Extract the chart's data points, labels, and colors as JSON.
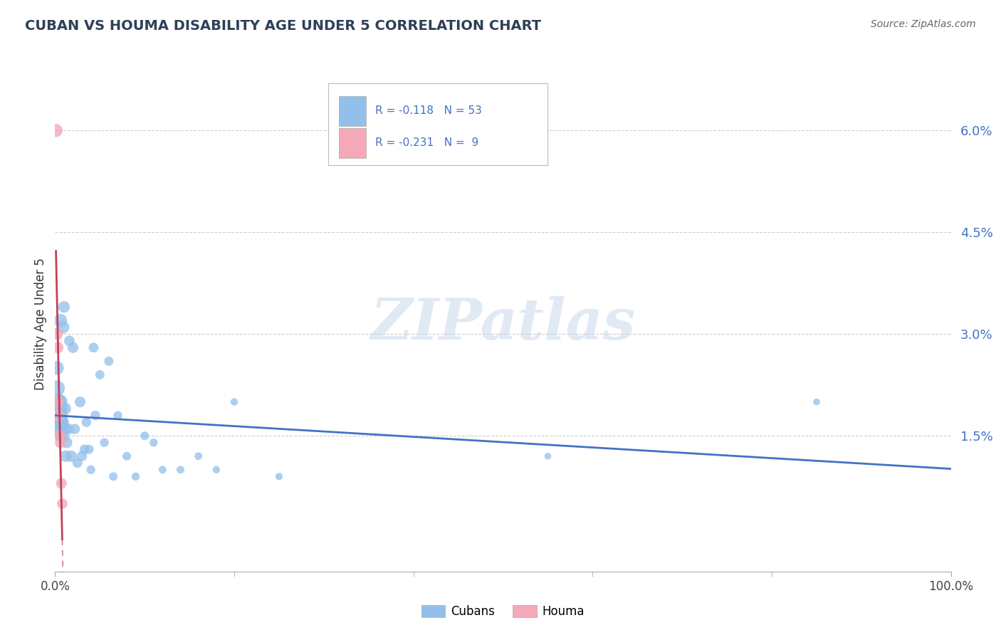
{
  "title": "CUBAN VS HOUMA DISABILITY AGE UNDER 5 CORRELATION CHART",
  "source_text": "Source: ZipAtlas.com",
  "ylabel": "Disability Age Under 5",
  "xlim": [
    0,
    1.0
  ],
  "ylim": [
    -0.005,
    0.068
  ],
  "ytick_vals": [
    0.015,
    0.03,
    0.045,
    0.06
  ],
  "ytick_labels": [
    "1.5%",
    "3.0%",
    "4.5%",
    "6.0%"
  ],
  "xtick_vals": [
    0.0,
    1.0
  ],
  "xtick_labels": [
    "0.0%",
    "100.0%"
  ],
  "title_color": "#2E4057",
  "title_fontsize": 14,
  "cubans_color": "#92C0EA",
  "houma_color": "#F4A8B8",
  "cubans_line_color": "#4472C4",
  "houma_line_color": "#C0415A",
  "houma_line_dashed_color": "#D08090",
  "watermark": "ZIPatlas",
  "background_color": "#FFFFFF",
  "grid_color": "#CCCCCC",
  "cubans_x": [
    0.001,
    0.002,
    0.002,
    0.003,
    0.003,
    0.004,
    0.004,
    0.005,
    0.005,
    0.005,
    0.006,
    0.006,
    0.007,
    0.007,
    0.008,
    0.008,
    0.009,
    0.01,
    0.01,
    0.011,
    0.012,
    0.013,
    0.015,
    0.016,
    0.018,
    0.02,
    0.022,
    0.025,
    0.028,
    0.03,
    0.033,
    0.035,
    0.038,
    0.04,
    0.043,
    0.045,
    0.05,
    0.055,
    0.06,
    0.065,
    0.07,
    0.08,
    0.09,
    0.1,
    0.11,
    0.12,
    0.14,
    0.16,
    0.18,
    0.2,
    0.25,
    0.55,
    0.85
  ],
  "cubans_y": [
    0.019,
    0.022,
    0.025,
    0.016,
    0.018,
    0.02,
    0.019,
    0.017,
    0.018,
    0.02,
    0.019,
    0.032,
    0.016,
    0.019,
    0.015,
    0.017,
    0.031,
    0.034,
    0.016,
    0.019,
    0.012,
    0.014,
    0.016,
    0.029,
    0.012,
    0.028,
    0.016,
    0.011,
    0.02,
    0.012,
    0.013,
    0.017,
    0.013,
    0.01,
    0.028,
    0.018,
    0.024,
    0.014,
    0.026,
    0.009,
    0.018,
    0.012,
    0.009,
    0.015,
    0.014,
    0.01,
    0.01,
    0.012,
    0.01,
    0.02,
    0.009,
    0.012,
    0.02
  ],
  "cubans_sizes": [
    320,
    260,
    200,
    280,
    260,
    240,
    210,
    300,
    270,
    250,
    230,
    180,
    170,
    160,
    200,
    180,
    160,
    140,
    170,
    155,
    140,
    130,
    120,
    115,
    135,
    120,
    110,
    100,
    120,
    110,
    100,
    95,
    88,
    80,
    100,
    95,
    88,
    80,
    88,
    75,
    80,
    75,
    68,
    75,
    68,
    62,
    62,
    62,
    55,
    55,
    55,
    48,
    48
  ],
  "houma_x": [
    0.001,
    0.002,
    0.003,
    0.003,
    0.004,
    0.005,
    0.006,
    0.007,
    0.008
  ],
  "houma_y": [
    0.06,
    0.03,
    0.028,
    0.02,
    0.018,
    0.015,
    0.014,
    0.008,
    0.005
  ],
  "houma_sizes": [
    180,
    150,
    135,
    165,
    150,
    135,
    128,
    120,
    112
  ]
}
